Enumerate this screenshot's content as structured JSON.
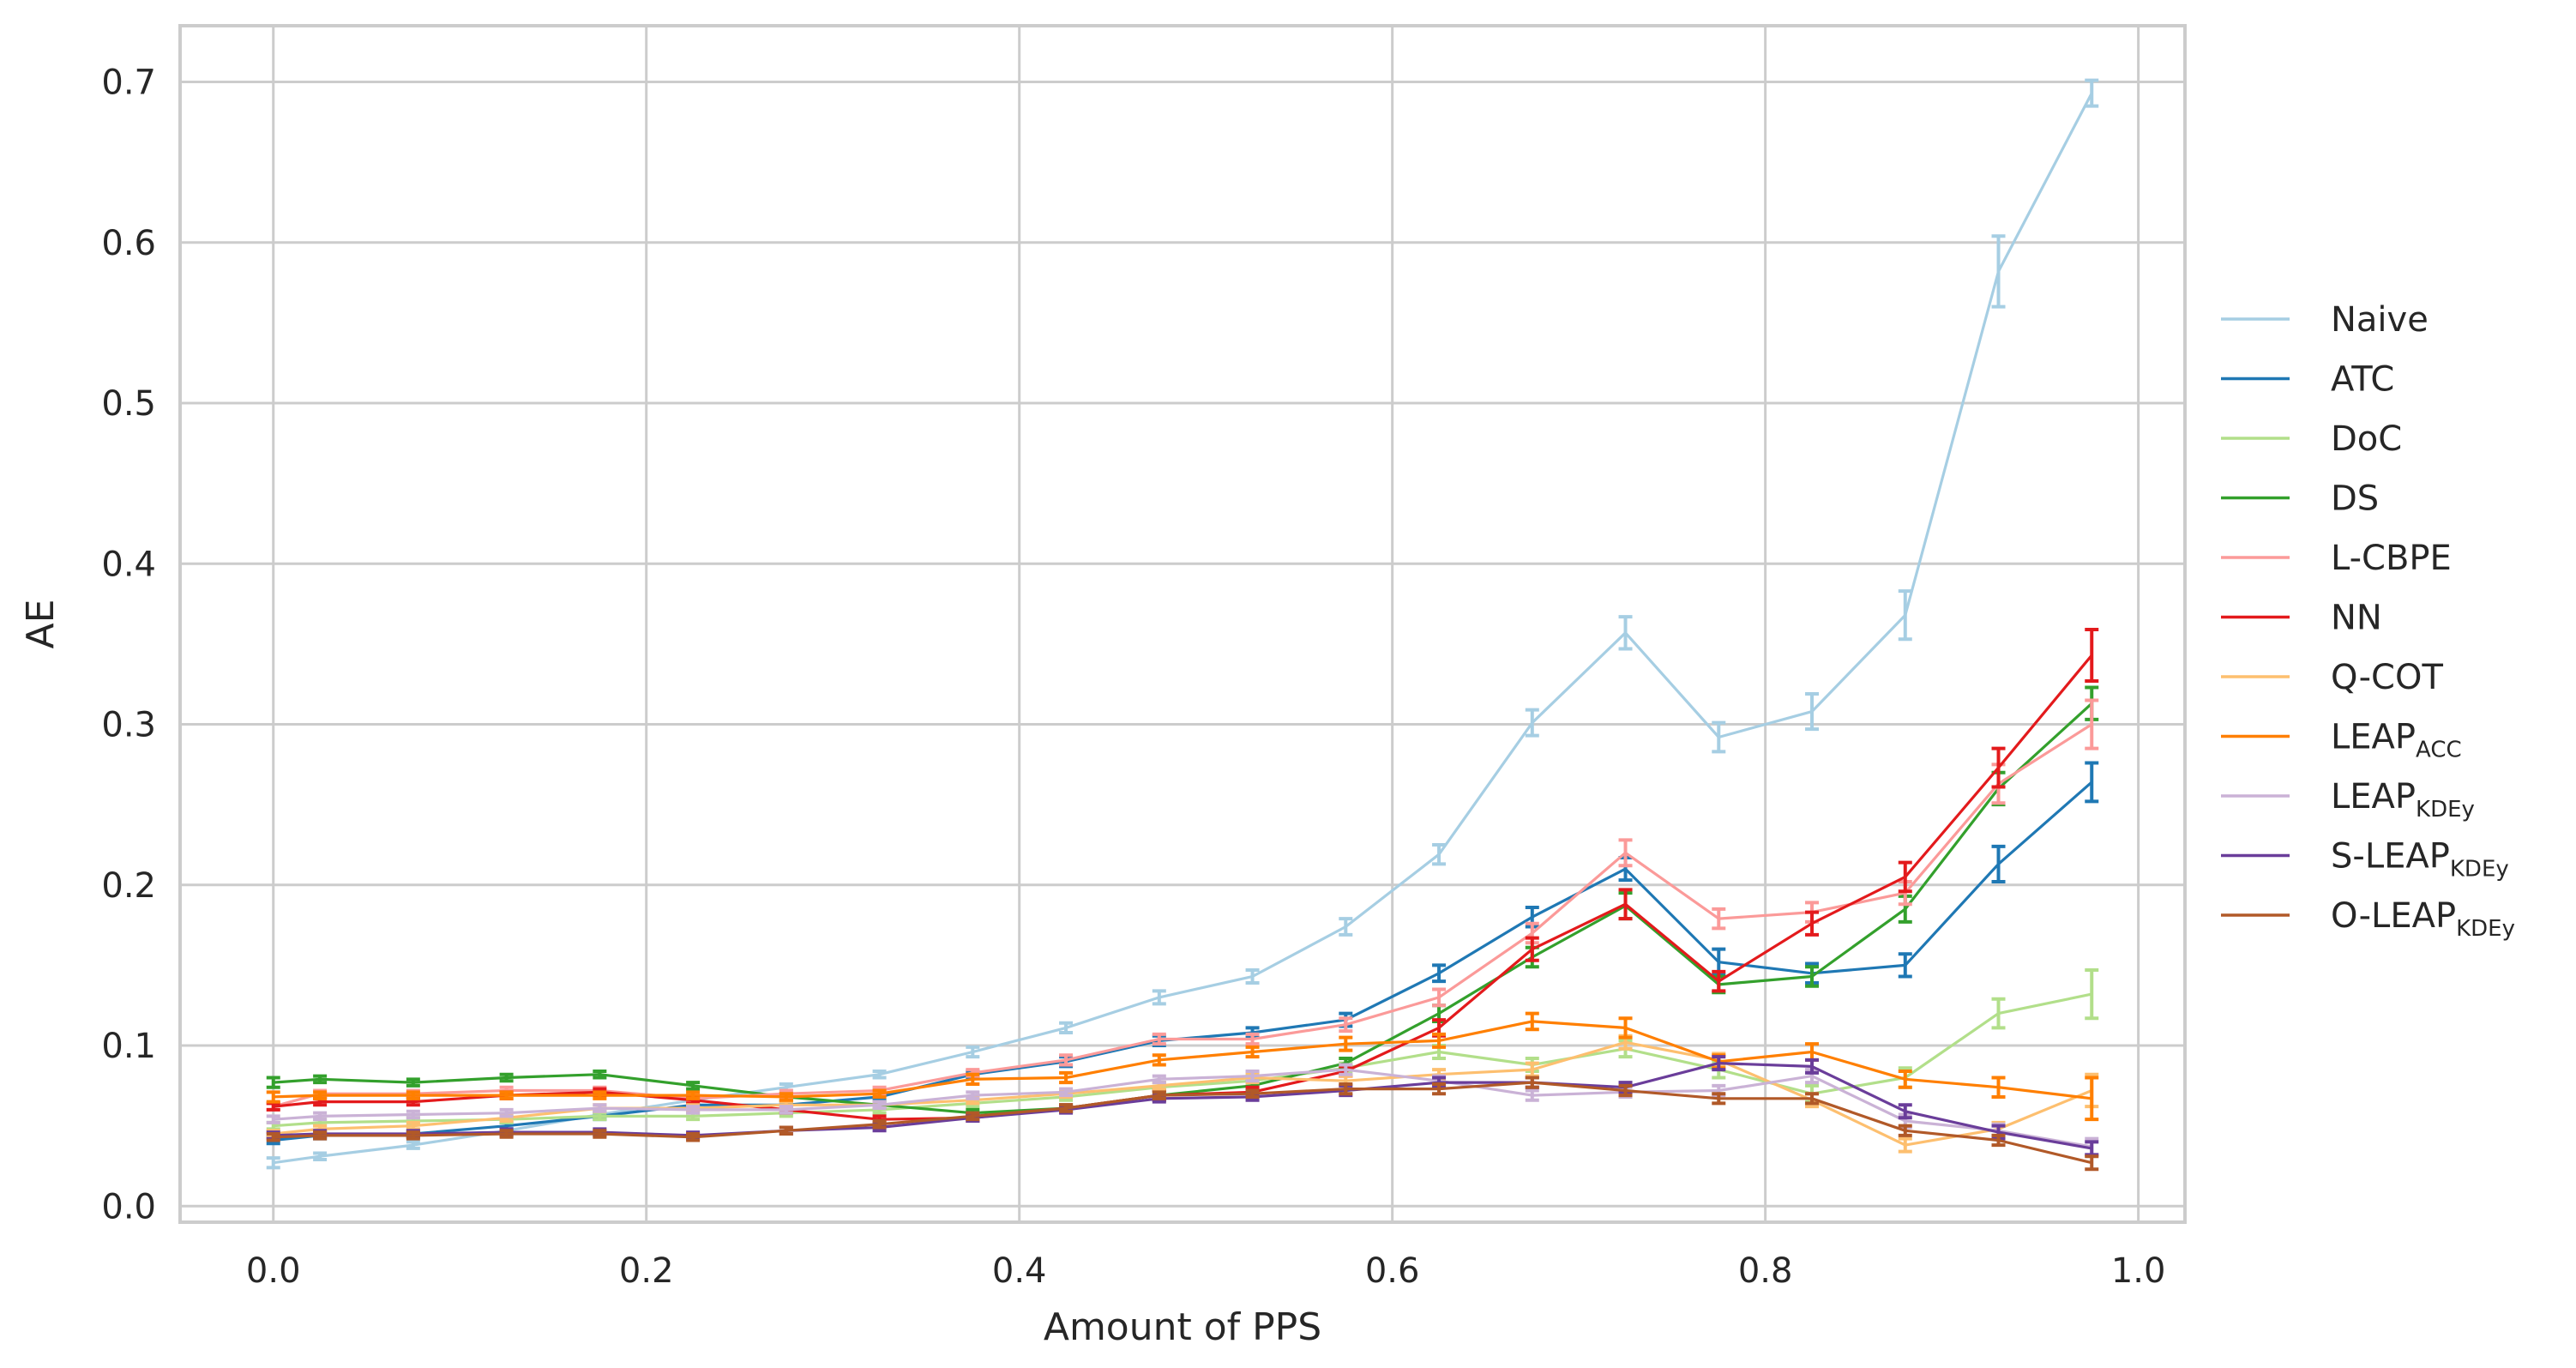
{
  "chart_data": {
    "type": "line",
    "xlabel": "Amount of PPS",
    "ylabel": "AE",
    "xlim": [
      -0.05,
      1.025
    ],
    "ylim": [
      -0.01,
      0.735
    ],
    "xticks": [
      0.0,
      0.2,
      0.4,
      0.6,
      0.8,
      1.0
    ],
    "xtick_labels": [
      "0.0",
      "0.2",
      "0.4",
      "0.6",
      "0.8",
      "1.0"
    ],
    "yticks": [
      0.0,
      0.1,
      0.2,
      0.3,
      0.4,
      0.5,
      0.6,
      0.7
    ],
    "ytick_labels": [
      "0.0",
      "0.1",
      "0.2",
      "0.3",
      "0.4",
      "0.5",
      "0.6",
      "0.7"
    ],
    "grid": true,
    "legend_position": "right, outside plot",
    "x": [
      0.0,
      0.025,
      0.075,
      0.125,
      0.175,
      0.225,
      0.275,
      0.325,
      0.375,
      0.425,
      0.475,
      0.525,
      0.575,
      0.625,
      0.675,
      0.725,
      0.775,
      0.825,
      0.875,
      0.925,
      0.975
    ],
    "series": [
      {
        "name": "Naive",
        "label_main": "Naive",
        "label_sub": "",
        "color": "#a6cee3",
        "values": [
          0.027,
          0.031,
          0.038,
          0.047,
          0.057,
          0.066,
          0.074,
          0.082,
          0.096,
          0.111,
          0.13,
          0.143,
          0.174,
          0.219,
          0.301,
          0.357,
          0.292,
          0.308,
          0.368,
          0.582,
          0.693
        ],
        "errors": [
          0.003,
          0.002,
          0.002,
          0.002,
          0.002,
          0.002,
          0.002,
          0.002,
          0.003,
          0.003,
          0.004,
          0.004,
          0.005,
          0.006,
          0.008,
          0.01,
          0.009,
          0.011,
          0.015,
          0.022,
          0.008
        ]
      },
      {
        "name": "ATC",
        "label_main": "ATC",
        "label_sub": "",
        "color": "#1f78b4",
        "values": [
          0.041,
          0.044,
          0.045,
          0.05,
          0.056,
          0.063,
          0.063,
          0.068,
          0.082,
          0.09,
          0.103,
          0.108,
          0.116,
          0.145,
          0.18,
          0.21,
          0.152,
          0.145,
          0.15,
          0.213,
          0.264
        ],
        "errors": [
          0.002,
          0.002,
          0.002,
          0.002,
          0.002,
          0.002,
          0.002,
          0.002,
          0.002,
          0.003,
          0.003,
          0.003,
          0.004,
          0.005,
          0.006,
          0.007,
          0.008,
          0.006,
          0.007,
          0.011,
          0.012
        ]
      },
      {
        "name": "DoC",
        "label_main": "DoC",
        "label_sub": "",
        "color": "#b2df8a",
        "values": [
          0.05,
          0.052,
          0.053,
          0.054,
          0.056,
          0.056,
          0.058,
          0.06,
          0.064,
          0.068,
          0.074,
          0.078,
          0.086,
          0.096,
          0.088,
          0.098,
          0.085,
          0.07,
          0.08,
          0.12,
          0.132
        ],
        "errors": [
          0.002,
          0.002,
          0.002,
          0.002,
          0.002,
          0.002,
          0.002,
          0.002,
          0.002,
          0.002,
          0.003,
          0.003,
          0.003,
          0.004,
          0.004,
          0.005,
          0.005,
          0.005,
          0.006,
          0.009,
          0.015
        ]
      },
      {
        "name": "DS",
        "label_main": "DS",
        "label_sub": "",
        "color": "#33a02c",
        "values": [
          0.077,
          0.079,
          0.077,
          0.08,
          0.082,
          0.075,
          0.068,
          0.063,
          0.058,
          0.061,
          0.069,
          0.075,
          0.089,
          0.12,
          0.155,
          0.187,
          0.138,
          0.143,
          0.185,
          0.26,
          0.313
        ],
        "errors": [
          0.003,
          0.002,
          0.002,
          0.002,
          0.002,
          0.002,
          0.002,
          0.002,
          0.002,
          0.002,
          0.003,
          0.003,
          0.003,
          0.005,
          0.006,
          0.008,
          0.005,
          0.006,
          0.008,
          0.01,
          0.01
        ]
      },
      {
        "name": "L-CBPE",
        "label_main": "L-CBPE",
        "label_sub": "",
        "color": "#fb9a99",
        "values": [
          0.062,
          0.07,
          0.07,
          0.072,
          0.072,
          0.067,
          0.07,
          0.072,
          0.083,
          0.091,
          0.104,
          0.104,
          0.113,
          0.13,
          0.17,
          0.22,
          0.179,
          0.183,
          0.195,
          0.263,
          0.3
        ],
        "errors": [
          0.002,
          0.002,
          0.002,
          0.002,
          0.002,
          0.002,
          0.002,
          0.002,
          0.002,
          0.003,
          0.003,
          0.003,
          0.004,
          0.005,
          0.006,
          0.008,
          0.006,
          0.006,
          0.007,
          0.012,
          0.015
        ]
      },
      {
        "name": "NN",
        "label_main": "NN",
        "label_sub": "",
        "color": "#e31a1c",
        "values": [
          0.062,
          0.065,
          0.065,
          0.069,
          0.071,
          0.066,
          0.06,
          0.054,
          0.055,
          0.061,
          0.069,
          0.071,
          0.084,
          0.111,
          0.16,
          0.188,
          0.14,
          0.176,
          0.205,
          0.273,
          0.343
        ],
        "errors": [
          0.002,
          0.002,
          0.002,
          0.002,
          0.002,
          0.002,
          0.002,
          0.002,
          0.002,
          0.002,
          0.003,
          0.003,
          0.003,
          0.005,
          0.007,
          0.009,
          0.006,
          0.007,
          0.009,
          0.012,
          0.016
        ]
      },
      {
        "name": "Q-COT",
        "label_main": "Q-COT",
        "label_sub": "",
        "color": "#fdbf6f",
        "values": [
          0.045,
          0.048,
          0.05,
          0.055,
          0.061,
          0.061,
          0.063,
          0.063,
          0.066,
          0.07,
          0.075,
          0.08,
          0.078,
          0.082,
          0.085,
          0.102,
          0.091,
          0.066,
          0.038,
          0.048,
          0.072
        ],
        "errors": [
          0.002,
          0.002,
          0.002,
          0.002,
          0.002,
          0.002,
          0.002,
          0.002,
          0.002,
          0.002,
          0.002,
          0.003,
          0.003,
          0.003,
          0.004,
          0.004,
          0.004,
          0.004,
          0.004,
          0.004,
          0.01
        ]
      },
      {
        "name": "LEAP_ACC",
        "label_main": "LEAP",
        "label_sub": "ACC",
        "color": "#ff7f00",
        "values": [
          0.068,
          0.069,
          0.069,
          0.069,
          0.069,
          0.069,
          0.068,
          0.07,
          0.079,
          0.08,
          0.091,
          0.096,
          0.101,
          0.103,
          0.115,
          0.111,
          0.09,
          0.096,
          0.079,
          0.074,
          0.067
        ],
        "errors": [
          0.003,
          0.002,
          0.002,
          0.002,
          0.002,
          0.002,
          0.002,
          0.002,
          0.003,
          0.003,
          0.003,
          0.003,
          0.004,
          0.004,
          0.005,
          0.006,
          0.004,
          0.005,
          0.005,
          0.006,
          0.013
        ]
      },
      {
        "name": "LEAP_KDEy",
        "label_main": "LEAP",
        "label_sub": "KDEy",
        "color": "#cab2d6",
        "values": [
          0.054,
          0.056,
          0.057,
          0.058,
          0.061,
          0.06,
          0.06,
          0.063,
          0.069,
          0.071,
          0.079,
          0.081,
          0.085,
          0.078,
          0.069,
          0.071,
          0.072,
          0.081,
          0.053,
          0.047,
          0.037
        ],
        "errors": [
          0.002,
          0.002,
          0.002,
          0.002,
          0.002,
          0.002,
          0.002,
          0.002,
          0.002,
          0.002,
          0.002,
          0.003,
          0.003,
          0.003,
          0.003,
          0.003,
          0.003,
          0.004,
          0.004,
          0.004,
          0.005
        ]
      },
      {
        "name": "S-LEAP_KDEy",
        "label_main": "S-LEAP",
        "label_sub": "KDEy",
        "color": "#6a3d9a",
        "values": [
          0.044,
          0.045,
          0.045,
          0.046,
          0.046,
          0.044,
          0.047,
          0.049,
          0.055,
          0.06,
          0.067,
          0.068,
          0.072,
          0.077,
          0.077,
          0.074,
          0.089,
          0.087,
          0.059,
          0.046,
          0.036
        ],
        "errors": [
          0.002,
          0.002,
          0.002,
          0.002,
          0.002,
          0.002,
          0.002,
          0.002,
          0.002,
          0.002,
          0.002,
          0.002,
          0.003,
          0.003,
          0.003,
          0.003,
          0.004,
          0.004,
          0.004,
          0.004,
          0.004
        ]
      },
      {
        "name": "O-LEAP_KDEy",
        "label_main": "O-LEAP",
        "label_sub": "KDEy",
        "color": "#b15928",
        "values": [
          0.043,
          0.044,
          0.044,
          0.045,
          0.045,
          0.043,
          0.047,
          0.051,
          0.056,
          0.061,
          0.069,
          0.07,
          0.073,
          0.073,
          0.077,
          0.072,
          0.067,
          0.067,
          0.047,
          0.041,
          0.027
        ],
        "errors": [
          0.002,
          0.002,
          0.002,
          0.002,
          0.002,
          0.002,
          0.002,
          0.002,
          0.002,
          0.002,
          0.002,
          0.002,
          0.003,
          0.003,
          0.003,
          0.003,
          0.003,
          0.003,
          0.003,
          0.003,
          0.004
        ]
      }
    ]
  }
}
